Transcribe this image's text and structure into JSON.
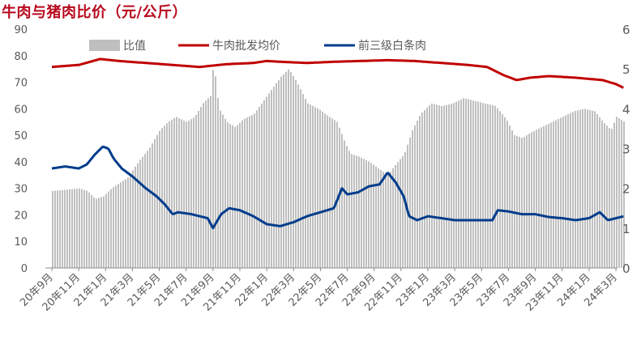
{
  "title": "牛肉与猪肉比价（元/公斤）",
  "chart_data": {
    "type": "bar+line",
    "title": "牛肉与猪肉比价（元/公斤）",
    "x_labels": [
      "20年9月",
      "20年11月",
      "21年1月",
      "21年3月",
      "21年5月",
      "21年7月",
      "21年9月",
      "21年11月",
      "22年1月",
      "22年3月",
      "22年5月",
      "22年7月",
      "22年9月",
      "22年11月",
      "23年1月",
      "23年3月",
      "23年5月",
      "23年7月",
      "23年9月",
      "23年11月",
      "24年1月",
      "24年3月"
    ],
    "left_axis": {
      "ylim": [
        0,
        90
      ],
      "ticks": [
        0,
        10,
        20,
        30,
        40,
        50,
        60,
        70,
        80,
        90
      ]
    },
    "right_axis": {
      "ylim": [
        0,
        6
      ],
      "ticks": [
        0,
        1,
        2,
        3,
        4,
        5,
        6
      ]
    },
    "legend_position": "top",
    "series": [
      {
        "name": "比值",
        "type": "bar",
        "axis": "left",
        "color": "#bfbfbf",
        "points": [
          [
            0,
            29
          ],
          [
            1,
            30
          ],
          [
            1.3,
            29
          ],
          [
            1.6,
            26
          ],
          [
            1.9,
            27
          ],
          [
            2.2,
            30
          ],
          [
            2.5,
            32
          ],
          [
            2.8,
            34
          ],
          [
            3.2,
            40
          ],
          [
            3.6,
            45
          ],
          [
            4.0,
            52
          ],
          [
            4.3,
            55
          ],
          [
            4.6,
            57
          ],
          [
            5.0,
            55
          ],
          [
            5.3,
            57
          ],
          [
            5.6,
            62
          ],
          [
            5.9,
            65
          ],
          [
            6.0,
            78
          ],
          [
            6.2,
            60
          ],
          [
            6.5,
            55
          ],
          [
            6.8,
            53
          ],
          [
            7.1,
            56
          ],
          [
            7.5,
            58
          ],
          [
            8.0,
            65
          ],
          [
            8.5,
            72
          ],
          [
            8.8,
            75
          ],
          [
            9.1,
            70
          ],
          [
            9.5,
            62
          ],
          [
            9.9,
            60
          ],
          [
            10.3,
            57
          ],
          [
            10.6,
            55
          ],
          [
            10.9,
            47
          ],
          [
            11.1,
            43
          ],
          [
            11.4,
            42
          ],
          [
            11.8,
            40
          ],
          [
            12.2,
            37
          ],
          [
            12.5,
            35
          ],
          [
            12.7,
            38
          ],
          [
            13.1,
            43
          ],
          [
            13.4,
            52
          ],
          [
            13.7,
            58
          ],
          [
            14.1,
            62
          ],
          [
            14.5,
            61
          ],
          [
            14.9,
            62
          ],
          [
            15.3,
            64
          ],
          [
            15.7,
            63
          ],
          [
            16.1,
            62
          ],
          [
            16.5,
            61
          ],
          [
            16.9,
            56
          ],
          [
            17.2,
            50
          ],
          [
            17.5,
            49
          ],
          [
            17.8,
            51
          ],
          [
            18.2,
            53
          ],
          [
            18.6,
            55
          ],
          [
            19.0,
            57
          ],
          [
            19.4,
            59
          ],
          [
            19.8,
            60
          ],
          [
            20.2,
            59
          ],
          [
            20.5,
            55
          ],
          [
            20.8,
            52
          ],
          [
            21.0,
            57
          ],
          [
            21.3,
            55
          ]
        ]
      },
      {
        "name": "牛肉批发均价",
        "type": "line",
        "axis": "right",
        "color": "#c00000",
        "points": [
          [
            0,
            5.05
          ],
          [
            1,
            5.1
          ],
          [
            1.8,
            5.25
          ],
          [
            2.5,
            5.2
          ],
          [
            3.5,
            5.15
          ],
          [
            4.5,
            5.1
          ],
          [
            5.5,
            5.05
          ],
          [
            6.5,
            5.12
          ],
          [
            7.5,
            5.15
          ],
          [
            8.0,
            5.2
          ],
          [
            8.5,
            5.18
          ],
          [
            9.5,
            5.15
          ],
          [
            10.5,
            5.18
          ],
          [
            11.5,
            5.2
          ],
          [
            12.5,
            5.22
          ],
          [
            13.5,
            5.2
          ],
          [
            14.5,
            5.15
          ],
          [
            15.5,
            5.1
          ],
          [
            16.2,
            5.05
          ],
          [
            16.8,
            4.85
          ],
          [
            17.3,
            4.72
          ],
          [
            17.8,
            4.78
          ],
          [
            18.5,
            4.82
          ],
          [
            19.5,
            4.78
          ],
          [
            20.5,
            4.72
          ],
          [
            21.0,
            4.62
          ],
          [
            21.3,
            4.52
          ]
        ]
      },
      {
        "name": "前三级白条肉",
        "type": "line",
        "axis": "right",
        "color": "#003c8c",
        "points": [
          [
            0,
            2.5
          ],
          [
            0.5,
            2.55
          ],
          [
            1.0,
            2.5
          ],
          [
            1.3,
            2.6
          ],
          [
            1.6,
            2.85
          ],
          [
            1.9,
            3.05
          ],
          [
            2.1,
            3.0
          ],
          [
            2.3,
            2.75
          ],
          [
            2.6,
            2.5
          ],
          [
            3.0,
            2.3
          ],
          [
            3.5,
            2.0
          ],
          [
            3.9,
            1.8
          ],
          [
            4.2,
            1.6
          ],
          [
            4.5,
            1.35
          ],
          [
            4.7,
            1.4
          ],
          [
            5.2,
            1.35
          ],
          [
            5.8,
            1.25
          ],
          [
            6.0,
            1.0
          ],
          [
            6.3,
            1.35
          ],
          [
            6.6,
            1.5
          ],
          [
            7.0,
            1.45
          ],
          [
            7.5,
            1.3
          ],
          [
            8.0,
            1.1
          ],
          [
            8.5,
            1.05
          ],
          [
            9.0,
            1.15
          ],
          [
            9.5,
            1.3
          ],
          [
            10.0,
            1.4
          ],
          [
            10.5,
            1.5
          ],
          [
            10.8,
            2.0
          ],
          [
            11.0,
            1.85
          ],
          [
            11.4,
            1.9
          ],
          [
            11.8,
            2.05
          ],
          [
            12.2,
            2.1
          ],
          [
            12.5,
            2.4
          ],
          [
            12.8,
            2.15
          ],
          [
            13.1,
            1.8
          ],
          [
            13.3,
            1.3
          ],
          [
            13.6,
            1.2
          ],
          [
            14.0,
            1.3
          ],
          [
            14.5,
            1.25
          ],
          [
            15.0,
            1.2
          ],
          [
            15.5,
            1.2
          ],
          [
            16.0,
            1.2
          ],
          [
            16.4,
            1.2
          ],
          [
            16.6,
            1.45
          ],
          [
            17.0,
            1.42
          ],
          [
            17.5,
            1.35
          ],
          [
            18.0,
            1.35
          ],
          [
            18.5,
            1.28
          ],
          [
            19.0,
            1.25
          ],
          [
            19.5,
            1.2
          ],
          [
            20.0,
            1.25
          ],
          [
            20.4,
            1.4
          ],
          [
            20.7,
            1.2
          ],
          [
            21.3,
            1.3
          ]
        ]
      }
    ]
  }
}
